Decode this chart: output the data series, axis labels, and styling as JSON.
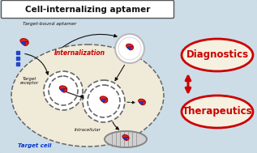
{
  "title": "Cell-internalizing aptamer",
  "title_fontsize": 7.5,
  "main_bg": "#ccdde8",
  "cell_bg": "#f0ead8",
  "ellipse_bg": "#f5f0e0",
  "ellipse_border": "#cc0000",
  "label_color_red": "#cc0000",
  "label_color_blue": "#0033cc",
  "arrow_color": "#cc0000",
  "dashed_color": "#666666",
  "black_color": "#111111",
  "diagnostics_label": "Diagnostics",
  "therapeutics_label": "Therapeutics",
  "target_bound_label": "Target-bound aptamer",
  "internalization_label": "Internalization",
  "target_receptor_label": "Target\nreceptor",
  "intracellular_label": "Intracellular",
  "target_cell_label": "Target cell"
}
